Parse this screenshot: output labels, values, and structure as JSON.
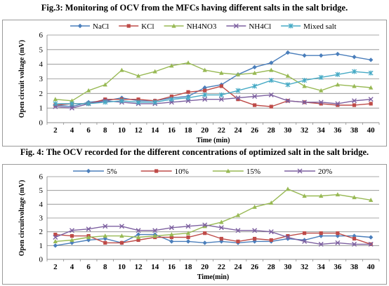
{
  "figures": [
    {
      "caption": "Fig.3: Monitoring of OCV from the MFCs having different salts in the salt bridge."
    },
    {
      "caption": "Fig. 4: The OCV recorded for the different concentrations of optimized salt in the salt bridge."
    }
  ],
  "chart_data": [
    {
      "type": "line",
      "xlabel": "Time (min)",
      "ylabel": "Open circuit voltage (mV)",
      "ylim": [
        0,
        6
      ],
      "yticks": [
        0,
        1,
        2,
        3,
        4,
        5,
        6
      ],
      "x": [
        2,
        4,
        6,
        8,
        10,
        12,
        14,
        16,
        18,
        20,
        22,
        24,
        26,
        28,
        30,
        32,
        34,
        36,
        38,
        40
      ],
      "legend_position": "top",
      "grid": true,
      "series": [
        {
          "name": "NaCl",
          "color": "#4a7ebb",
          "marker": "diamond",
          "values": [
            1.2,
            1.1,
            1.4,
            1.5,
            1.7,
            1.5,
            1.5,
            1.7,
            1.8,
            2.4,
            2.6,
            3.3,
            3.8,
            4.1,
            4.8,
            4.6,
            4.6,
            4.7,
            4.5,
            4.3
          ]
        },
        {
          "name": "KCl",
          "color": "#be4b48",
          "marker": "square",
          "values": [
            1.2,
            1.3,
            1.3,
            1.6,
            1.6,
            1.6,
            1.5,
            1.8,
            2.1,
            2.2,
            2.5,
            1.6,
            1.2,
            1.1,
            1.5,
            1.4,
            1.3,
            1.2,
            1.2,
            1.3
          ]
        },
        {
          "name": "NH4NO3",
          "color": "#98b954",
          "marker": "triangle",
          "values": [
            1.6,
            1.5,
            2.2,
            2.6,
            3.6,
            3.2,
            3.5,
            3.9,
            4.1,
            3.6,
            3.4,
            3.3,
            3.4,
            3.6,
            3.2,
            2.5,
            2.2,
            2.6,
            2.5,
            2.4
          ]
        },
        {
          "name": "NH4Cl",
          "color": "#7d60a0",
          "marker": "x",
          "values": [
            1.1,
            1.0,
            1.3,
            1.5,
            1.4,
            1.3,
            1.3,
            1.4,
            1.5,
            1.6,
            1.6,
            1.7,
            1.8,
            1.9,
            1.5,
            1.4,
            1.4,
            1.3,
            1.5,
            1.6
          ]
        },
        {
          "name": "Mixed salt",
          "color": "#46aac5",
          "marker": "asterisk",
          "values": [
            1.3,
            1.3,
            1.3,
            1.4,
            1.5,
            1.4,
            1.4,
            1.6,
            1.7,
            1.9,
            1.9,
            2.2,
            2.5,
            2.9,
            2.6,
            2.9,
            3.1,
            3.3,
            3.5,
            3.4
          ]
        }
      ]
    },
    {
      "type": "line",
      "xlabel": "Time(min)",
      "ylabel": "Open circuitvoltage (mV)",
      "ylim": [
        0,
        6
      ],
      "yticks": [
        0,
        1,
        2,
        3,
        4,
        5,
        6
      ],
      "x": [
        2,
        4,
        6,
        8,
        10,
        12,
        14,
        16,
        18,
        20,
        22,
        24,
        26,
        28,
        30,
        32,
        34,
        36,
        38,
        40
      ],
      "legend_position": "top",
      "grid": true,
      "series": [
        {
          "name": "5%",
          "color": "#4a7ebb",
          "marker": "diamond",
          "values": [
            1.0,
            1.2,
            1.4,
            1.5,
            1.2,
            1.8,
            1.8,
            1.3,
            1.3,
            1.2,
            1.3,
            1.2,
            1.3,
            1.3,
            1.5,
            1.4,
            1.7,
            1.7,
            1.7,
            1.6
          ]
        },
        {
          "name": "10%",
          "color": "#be4b48",
          "marker": "square",
          "values": [
            1.8,
            1.7,
            1.7,
            1.2,
            1.2,
            1.4,
            1.6,
            1.6,
            1.6,
            1.9,
            1.5,
            1.3,
            1.5,
            1.4,
            1.7,
            1.9,
            1.9,
            1.9,
            1.5,
            1.1
          ]
        },
        {
          "name": "15%",
          "color": "#98b954",
          "marker": "triangle",
          "values": [
            1.3,
            1.4,
            1.6,
            1.7,
            1.7,
            1.6,
            1.7,
            1.8,
            1.9,
            2.4,
            2.7,
            3.2,
            3.8,
            4.1,
            5.1,
            4.6,
            4.6,
            4.7,
            4.5,
            4.3
          ]
        },
        {
          "name": "20%",
          "color": "#7d60a0",
          "marker": "x",
          "values": [
            1.6,
            2.1,
            2.2,
            2.4,
            2.4,
            2.1,
            2.1,
            2.3,
            2.4,
            2.5,
            2.3,
            2.1,
            2.1,
            2.0,
            1.6,
            1.3,
            1.1,
            1.2,
            1.1,
            1.1
          ]
        }
      ]
    }
  ]
}
